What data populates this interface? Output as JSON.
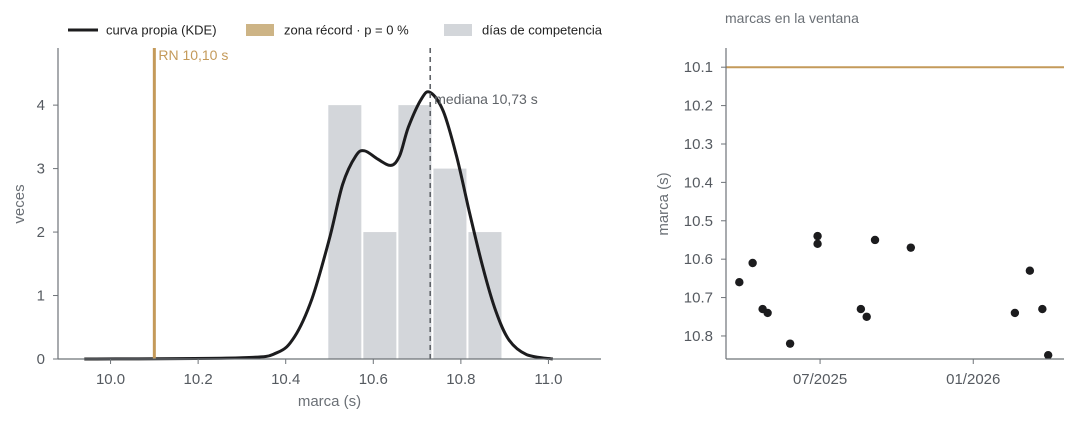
{
  "colors": {
    "kde": "#1c1c1e",
    "record": "#c49a5a",
    "record_legend": "#cdb486",
    "hist": "#d3d6da",
    "median": "#5f6368",
    "axis": "#6e7378",
    "points": "#1c1c1e"
  },
  "chart_data": [
    {
      "type": "histogram",
      "title": "",
      "xlabel": "marca (s)",
      "ylabel": "veces",
      "xlim": [
        9.88,
        11.12
      ],
      "ylim": [
        0,
        4.9
      ],
      "xticks": [
        10.0,
        10.2,
        10.4,
        10.6,
        10.8,
        11.0
      ],
      "xtick_labels": [
        "10.0",
        "10.2",
        "10.4",
        "10.6",
        "10.8",
        "11.0"
      ],
      "yticks": [
        0,
        1,
        2,
        3,
        4
      ],
      "ytick_labels": [
        "0",
        "1",
        "2",
        "3",
        "4"
      ],
      "legend": {
        "placement": "top",
        "entries": [
          {
            "label": "curva propia (KDE)",
            "kind": "line"
          },
          {
            "label": "zona récord · p = 0 %",
            "kind": "patch-record"
          },
          {
            "label": "días de competencia",
            "kind": "patch-hist"
          }
        ]
      },
      "bins": [
        {
          "x0": 10.495,
          "x1": 10.575,
          "count": 4
        },
        {
          "x0": 10.575,
          "x1": 10.655,
          "count": 2
        },
        {
          "x0": 10.655,
          "x1": 10.735,
          "count": 4
        },
        {
          "x0": 10.735,
          "x1": 10.815,
          "count": 3
        },
        {
          "x0": 10.815,
          "x1": 10.895,
          "count": 2
        }
      ],
      "kde": {
        "x": [
          9.94,
          10.3,
          10.38,
          10.42,
          10.46,
          10.5,
          10.53,
          10.56,
          10.58,
          10.61,
          10.64,
          10.66,
          10.68,
          10.71,
          10.73,
          10.76,
          10.79,
          10.82,
          10.85,
          10.88,
          10.91,
          10.95,
          11.01
        ],
        "y": [
          0.0,
          0.02,
          0.1,
          0.35,
          0.95,
          1.9,
          2.75,
          3.2,
          3.28,
          3.15,
          3.05,
          3.2,
          3.65,
          4.1,
          4.2,
          3.9,
          3.2,
          2.3,
          1.45,
          0.75,
          0.3,
          0.07,
          0.0
        ]
      },
      "record_line": {
        "x": 10.1,
        "label": "RN 10,10 s"
      },
      "median_line": {
        "x": 10.73,
        "label": "mediana 10,73 s"
      }
    },
    {
      "type": "scatter",
      "title": "marcas en la ventana",
      "xlabel": "",
      "ylabel": "marca (s)",
      "x_type": "date",
      "xlim": [
        "2025-03-10",
        "2026-04-20"
      ],
      "ylim": [
        10.86,
        10.05
      ],
      "y_inverted": true,
      "xticks": [
        "2025-07-01",
        "2026-01-01"
      ],
      "xtick_labels": [
        "07/2025",
        "01/2026"
      ],
      "yticks": [
        10.1,
        10.2,
        10.3,
        10.4,
        10.5,
        10.6,
        10.7,
        10.8
      ],
      "ytick_labels": [
        "10.1",
        "10.2",
        "10.3",
        "10.4",
        "10.5",
        "10.6",
        "10.7",
        "10.8"
      ],
      "record_line": {
        "y": 10.1
      },
      "points": [
        {
          "x": "2025-03-26",
          "y": 10.66
        },
        {
          "x": "2025-04-11",
          "y": 10.61
        },
        {
          "x": "2025-04-23",
          "y": 10.73
        },
        {
          "x": "2025-04-29",
          "y": 10.74
        },
        {
          "x": "2025-05-26",
          "y": 10.82
        },
        {
          "x": "2025-06-28",
          "y": 10.54
        },
        {
          "x": "2025-06-28",
          "y": 10.56
        },
        {
          "x": "2025-08-19",
          "y": 10.73
        },
        {
          "x": "2025-08-26",
          "y": 10.75
        },
        {
          "x": "2025-09-05",
          "y": 10.55
        },
        {
          "x": "2025-10-18",
          "y": 10.57
        },
        {
          "x": "2026-02-20",
          "y": 10.74
        },
        {
          "x": "2026-03-10",
          "y": 10.63
        },
        {
          "x": "2026-03-25",
          "y": 10.73
        },
        {
          "x": "2026-04-01",
          "y": 10.85
        }
      ]
    }
  ]
}
